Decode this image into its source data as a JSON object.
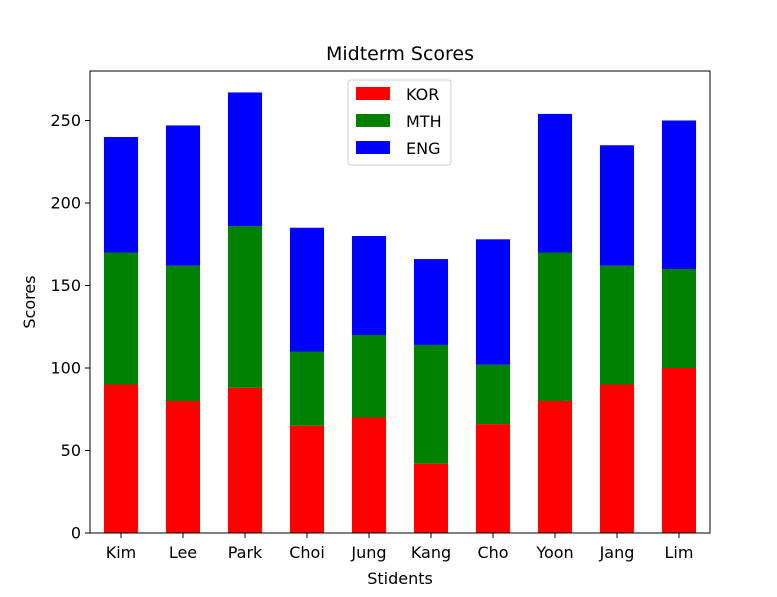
{
  "chart_data": {
    "type": "bar",
    "stacked": true,
    "title": "Midterm Scores",
    "xlabel": "Stidents",
    "ylabel": "Scores",
    "categories": [
      "Kim",
      "Lee",
      "Park",
      "Choi",
      "Jung",
      "Kang",
      "Cho",
      "Yoon",
      "Jang",
      "Lim"
    ],
    "series": [
      {
        "name": "KOR",
        "color": "#ff0000",
        "values": [
          90,
          80,
          88,
          65,
          70,
          42,
          66,
          80,
          90,
          100
        ]
      },
      {
        "name": "MTH",
        "color": "#008000",
        "values": [
          80,
          82,
          98,
          45,
          50,
          72,
          36,
          90,
          72,
          60
        ]
      },
      {
        "name": "ENG",
        "color": "#0000ff",
        "values": [
          70,
          85,
          81,
          75,
          60,
          52,
          76,
          84,
          73,
          90
        ]
      }
    ],
    "ylim": [
      0,
      280
    ],
    "yticks": [
      0,
      50,
      100,
      150,
      200,
      250
    ],
    "grid": false,
    "legend_position": "top-center"
  }
}
